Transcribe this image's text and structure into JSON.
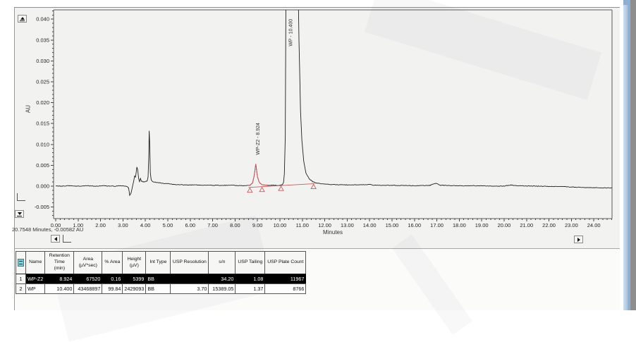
{
  "chrome": {
    "status_text": "20.7548 Minutes, -0.00582 AU"
  },
  "chart_data": {
    "type": "line",
    "title": "",
    "xlabel": "Minutes",
    "ylabel": "AU",
    "xlim": [
      0,
      24.8
    ],
    "ylim": [
      -0.0078,
      0.0422
    ],
    "x_major_step": 1.0,
    "x_minor_step": 0.2,
    "x_label_max": 24,
    "y_major_step": 0.005,
    "y_minor_step": 0.001,
    "y_label_min": -0.005,
    "y_label_max": 0.04,
    "grid": false,
    "trace_color": "#1f1f1f",
    "overlay_color": "#c85a5a",
    "noise_amplitude": 7e-05,
    "trace": [
      [
        0,
        0.0001
      ],
      [
        0.3,
        0
      ],
      [
        0.6,
        0.0001
      ],
      [
        1,
        0
      ],
      [
        1.4,
        0.0001
      ],
      [
        1.8,
        0
      ],
      [
        2.2,
        0.0001
      ],
      [
        2.6,
        0
      ],
      [
        3.0,
        0.0001
      ],
      [
        3.15,
        0
      ],
      [
        3.25,
        -0.0004
      ],
      [
        3.3,
        -0.0022
      ],
      [
        3.36,
        -0.0016
      ],
      [
        3.42,
        -0.0002
      ],
      [
        3.48,
        0.0013
      ],
      [
        3.52,
        0.0024
      ],
      [
        3.56,
        0.0021
      ],
      [
        3.62,
        0.0046
      ],
      [
        3.66,
        0.0038
      ],
      [
        3.7,
        0.0018
      ],
      [
        3.74,
        0.0011
      ],
      [
        3.78,
        0.0019
      ],
      [
        3.82,
        0.0012
      ],
      [
        3.9,
        0.001
      ],
      [
        4.0,
        0.0011
      ],
      [
        4.08,
        0.0013
      ],
      [
        4.12,
        0.0022
      ],
      [
        4.15,
        0.007
      ],
      [
        4.17,
        0.0133
      ],
      [
        4.19,
        0.0108
      ],
      [
        4.22,
        0.0032
      ],
      [
        4.26,
        0.0014
      ],
      [
        4.32,
        0.0011
      ],
      [
        4.4,
        0.001
      ],
      [
        4.5,
        0.0009
      ],
      [
        4.65,
        0.0008
      ],
      [
        4.8,
        0.0007
      ],
      [
        5.0,
        0.0006
      ],
      [
        5.3,
        0.0004
      ],
      [
        5.7,
        0.0003
      ],
      [
        6.2,
        0.0003
      ],
      [
        6.8,
        0.0002
      ],
      [
        7.4,
        0.0002
      ],
      [
        8.0,
        0.0002
      ],
      [
        8.4,
        0.0001
      ],
      [
        8.55,
        0.0002
      ],
      [
        8.66,
        0.0002
      ],
      [
        8.78,
        0.0008
      ],
      [
        8.85,
        0.0025
      ],
      [
        8.89,
        0.004
      ],
      [
        8.924,
        0.0053
      ],
      [
        8.96,
        0.0038
      ],
      [
        9.0,
        0.0022
      ],
      [
        9.06,
        0.0012
      ],
      [
        9.12,
        0.0006
      ],
      [
        9.2,
        0.0004
      ],
      [
        9.3,
        0.0003
      ],
      [
        9.45,
        0.0002
      ],
      [
        9.7,
        0.0002
      ],
      [
        10.0,
        0.0002
      ],
      [
        10.1,
        0.0003
      ],
      [
        10.16,
        0.0008
      ],
      [
        10.2,
        0.003
      ],
      [
        10.24,
        0.012
      ],
      [
        10.28,
        0.06
      ],
      [
        10.78,
        0.06
      ],
      [
        10.85,
        0.035
      ],
      [
        10.92,
        0.018
      ],
      [
        10.98,
        0.011
      ],
      [
        11.06,
        0.006
      ],
      [
        11.16,
        0.0032
      ],
      [
        11.3,
        0.0018
      ],
      [
        11.45,
        0.0011
      ],
      [
        11.6,
        0.0008
      ],
      [
        11.8,
        0.0006
      ],
      [
        12.2,
        0.0004
      ],
      [
        13,
        0.0003
      ],
      [
        14,
        0.0004
      ],
      [
        14.15,
        0.0002
      ],
      [
        15,
        0.0002
      ],
      [
        16,
        0.0001
      ],
      [
        16.7,
        0.0002
      ],
      [
        16.95,
        0.0007
      ],
      [
        17.15,
        0.0002
      ],
      [
        18,
        0.0001
      ],
      [
        19,
        0.0001
      ],
      [
        20,
        0
      ],
      [
        20.3,
        0.0003
      ],
      [
        20.6,
        0.0001
      ],
      [
        21.5,
        0
      ],
      [
        22.5,
        -0.0001
      ],
      [
        23.5,
        -0.0003
      ],
      [
        24.3,
        -0.0004
      ],
      [
        24.8,
        -0.0004
      ]
    ],
    "red_segment": [
      8.55,
      9.45
    ],
    "baseline": {
      "t1": 8.6,
      "au1": -0.0003,
      "t2": 11.55,
      "au2": 0.0006
    },
    "baseline_markers_t": [
      8.66,
      9.2,
      10.05,
      11.5
    ],
    "peaks": [
      {
        "label": "WP-Z2 - 8.924",
        "t": 8.924,
        "label_au": 0.0075
      },
      {
        "label": "WP - 10.400",
        "t": 10.4,
        "label_au": 0.0335
      }
    ]
  },
  "table": {
    "row_num_width": 14,
    "columns": [
      {
        "label": "Name",
        "width": 27,
        "align": "left"
      },
      {
        "label": "Retention\nTime\n(min)",
        "width": 41,
        "align": "right"
      },
      {
        "label": "Area\n(µV*sec)",
        "width": 40,
        "align": "right"
      },
      {
        "label": "% Area",
        "width": 29,
        "align": "right"
      },
      {
        "label": "Height\n(µV)",
        "width": 31,
        "align": "right"
      },
      {
        "label": "Int Type",
        "width": 35,
        "align": "left"
      },
      {
        "label": "USP Resolution",
        "width": 54,
        "align": "right"
      },
      {
        "label": "s/n",
        "width": 38,
        "align": "right"
      },
      {
        "label": "USP Tailing",
        "width": 42,
        "align": "right"
      },
      {
        "label": "USP Plate Count",
        "width": 58,
        "align": "right"
      }
    ],
    "rows": [
      {
        "num": "1",
        "selected": true,
        "cells": [
          "WP-Z2",
          "8.924",
          "67520",
          "0.16",
          "5399",
          "BB",
          "",
          "34.20",
          "1.08",
          "11967"
        ]
      },
      {
        "num": "2",
        "selected": false,
        "cells": [
          "WP",
          "10.400",
          "43468897",
          "99.84",
          "2429093",
          "BB",
          "3.70",
          "15389.05",
          "1.37",
          "8766"
        ]
      }
    ]
  }
}
